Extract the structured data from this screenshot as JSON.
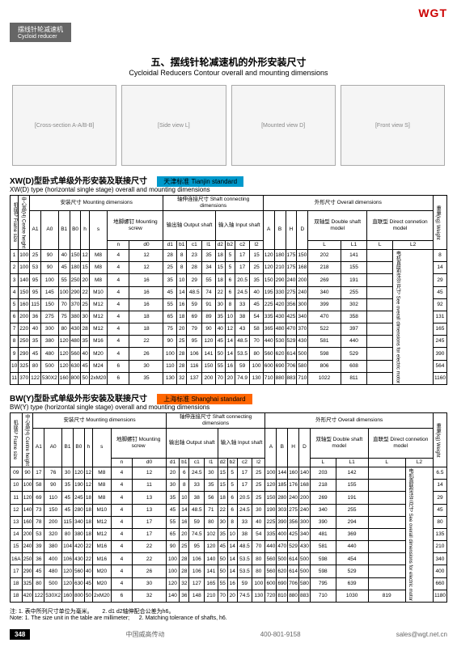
{
  "logo": "WGT",
  "headerBar": {
    "cn": "摆线针轮减速机",
    "en": "Cycloid reducer"
  },
  "mainTitle": {
    "cn": "五、摆线针轮减速机的外形安装尺寸",
    "en": "Cycloidal Reducers Contour overall and mounting dimensions"
  },
  "diagramPlaceholders": [
    "[Cross-section A-A/B-B]",
    "[Side view L]",
    "[Mounted view D]",
    "[Front view S]"
  ],
  "tableXW": {
    "subtitleCn": "XW(D)型卧式单级外形安装及联接尺寸",
    "subtitleEn": "XW(D) type (horizontal single stage) overall and mounting dimensions",
    "badge": "天津标准 Tianjin standard",
    "badgeClass": "badge-blue",
    "groups": {
      "frame": "机座号\nFrame size",
      "centre": "中心高(H)\nCentre height",
      "mounting": "安装尺寸 Mounting dimensions",
      "mscrew": "地脚螺钉\nMounting screw",
      "shaft": "轴伸连接尺寸\nShaft connecting dimensions",
      "output": "输出轴\nOutput shaft",
      "input": "输入轴\nInput shaft",
      "overall": "外形尺寸 Overall dimensions",
      "double": "双轴型\nDouble shaft model",
      "direct": "直联型\nDirect connetion model",
      "weight": "重量(kg)\nWeight",
      "flange": "电机直联型法兰尺寸\nSee overall dimensions\nfor electric motor"
    },
    "cols": [
      "A1",
      "A0",
      "B1",
      "B0",
      "h",
      "s",
      "n",
      "d0",
      "d1",
      "b1",
      "c1",
      "l1",
      "d2",
      "b2",
      "c2",
      "l2",
      "A",
      "B",
      "H",
      "D",
      "L",
      "L1",
      "L",
      "L2"
    ],
    "rows": [
      [
        "1",
        "100",
        "25",
        "90",
        "40",
        "150",
        "12",
        "M8",
        "4",
        "12",
        "28",
        "8",
        "23",
        "35",
        "18",
        "5",
        "17",
        "15",
        "120",
        "180",
        "175",
        "150",
        "202",
        "141",
        "",
        "8"
      ],
      [
        "2",
        "100",
        "53",
        "90",
        "45",
        "180",
        "15",
        "M8",
        "4",
        "12",
        "25",
        "8",
        "28",
        "34",
        "15",
        "5",
        "17",
        "25",
        "120",
        "210",
        "175",
        "168",
        "218",
        "155",
        "",
        "14"
      ],
      [
        "3",
        "140",
        "95",
        "100",
        "55",
        "250",
        "20",
        "M8",
        "4",
        "16",
        "35",
        "10",
        "29",
        "55",
        "18",
        "6",
        "20.5",
        "35",
        "150",
        "290",
        "240",
        "200",
        "269",
        "191",
        "",
        "29"
      ],
      [
        "4",
        "150",
        "95",
        "145",
        "100",
        "290",
        "22",
        "M10",
        "4",
        "16",
        "45",
        "14",
        "48.5",
        "74",
        "22",
        "6",
        "24.5",
        "40",
        "195",
        "330",
        "275",
        "240",
        "340",
        "255",
        "",
        "45"
      ],
      [
        "5",
        "160",
        "115",
        "150",
        "70",
        "370",
        "25",
        "M12",
        "4",
        "16",
        "55",
        "16",
        "59",
        "91",
        "30",
        "8",
        "33",
        "45",
        "225",
        "420",
        "356",
        "300",
        "399",
        "302",
        "",
        "92"
      ],
      [
        "6",
        "200",
        "36",
        "275",
        "75",
        "380",
        "30",
        "M12",
        "4",
        "18",
        "65",
        "18",
        "69",
        "89",
        "35",
        "10",
        "38",
        "54",
        "335",
        "430",
        "425",
        "340",
        "470",
        "358",
        "",
        "131"
      ],
      [
        "7",
        "220",
        "40",
        "300",
        "80",
        "430",
        "28",
        "M12",
        "4",
        "18",
        "75",
        "20",
        "79",
        "90",
        "40",
        "12",
        "43",
        "58",
        "365",
        "480",
        "470",
        "370",
        "522",
        "397",
        "",
        "165"
      ],
      [
        "8",
        "250",
        "35",
        "380",
        "120",
        "480",
        "35",
        "M16",
        "4",
        "22",
        "90",
        "25",
        "95",
        "120",
        "45",
        "14",
        "48.5",
        "70",
        "440",
        "530",
        "529",
        "430",
        "581",
        "440",
        "",
        "245"
      ],
      [
        "9",
        "290",
        "45",
        "480",
        "120",
        "560",
        "40",
        "M20",
        "4",
        "26",
        "100",
        "28",
        "106",
        "141",
        "50",
        "14",
        "53.5",
        "80",
        "560",
        "620",
        "614",
        "500",
        "598",
        "529",
        "",
        "390"
      ],
      [
        "10",
        "325",
        "80",
        "500",
        "120",
        "630",
        "45",
        "M24",
        "6",
        "30",
        "110",
        "28",
        "116",
        "150",
        "55",
        "16",
        "59",
        "100",
        "600",
        "690",
        "706",
        "580",
        "806",
        "608",
        "",
        "564"
      ],
      [
        "11",
        "370",
        "122",
        "530X2",
        "160",
        "800",
        "50",
        "2xM20",
        "6",
        "35",
        "130",
        "32",
        "137",
        "200",
        "70",
        "20",
        "74.9",
        "130",
        "710",
        "880",
        "883",
        "710",
        "1022",
        "811",
        "",
        "1160"
      ]
    ]
  },
  "tableBW": {
    "subtitleCn": "BW(Y)型卧式单级外形安装及联接尺寸",
    "subtitleEn": "BW(Y) type (horizontal single stage) overall and mounting dimensions",
    "badge": "上海标准 Shanghai standard",
    "badgeClass": "badge-orange",
    "cols": [
      "A1",
      "A0",
      "B1",
      "B0",
      "h",
      "s",
      "n",
      "d0",
      "d1",
      "b1",
      "c1",
      "l1",
      "d2",
      "b2",
      "c2",
      "l2",
      "A",
      "B",
      "H",
      "D",
      "L",
      "L1",
      "L",
      "L2"
    ],
    "rows": [
      [
        "09",
        "90",
        "17",
        "76",
        "30",
        "120",
        "12",
        "M8",
        "4",
        "12",
        "20",
        "6",
        "24.5",
        "30",
        "15",
        "5",
        "17",
        "25",
        "100",
        "144",
        "160",
        "140",
        "203",
        "142",
        "",
        "6.5"
      ],
      [
        "10",
        "100",
        "58",
        "90",
        "35",
        "190",
        "12",
        "M8",
        "4",
        "11",
        "30",
        "8",
        "33",
        "35",
        "15",
        "5",
        "17",
        "25",
        "120",
        "185",
        "176",
        "168",
        "218",
        "155",
        "",
        "14"
      ],
      [
        "11",
        "120",
        "69",
        "110",
        "45",
        "245",
        "18",
        "M8",
        "4",
        "13",
        "35",
        "10",
        "38",
        "56",
        "18",
        "6",
        "20.5",
        "25",
        "150",
        "280",
        "240",
        "200",
        "269",
        "191",
        "",
        "29"
      ],
      [
        "12",
        "140",
        "73",
        "150",
        "45",
        "280",
        "18",
        "M10",
        "4",
        "13",
        "45",
        "14",
        "48.5",
        "71",
        "22",
        "6",
        "24.5",
        "30",
        "190",
        "303",
        "275",
        "240",
        "340",
        "255",
        "",
        "45"
      ],
      [
        "13",
        "160",
        "78",
        "200",
        "115",
        "340",
        "18",
        "M12",
        "4",
        "17",
        "55",
        "16",
        "59",
        "80",
        "30",
        "8",
        "33",
        "40",
        "225",
        "390",
        "356",
        "300",
        "390",
        "294",
        "",
        "80"
      ],
      [
        "14",
        "200",
        "53",
        "320",
        "80",
        "380",
        "18",
        "M12",
        "4",
        "17",
        "65",
        "20",
        "74.5",
        "102",
        "35",
        "10",
        "38",
        "54",
        "335",
        "400",
        "425",
        "340",
        "481",
        "369",
        "",
        "135"
      ],
      [
        "15",
        "240",
        "39",
        "380",
        "104",
        "420",
        "22",
        "M16",
        "4",
        "22",
        "90",
        "25",
        "95",
        "120",
        "45",
        "14",
        "48.5",
        "70",
        "440",
        "470",
        "529",
        "430",
        "581",
        "440",
        "",
        "210"
      ],
      [
        "16A",
        "250",
        "36",
        "400",
        "106",
        "430",
        "22",
        "M16",
        "4",
        "22",
        "100",
        "28",
        "106",
        "140",
        "50",
        "14",
        "53.5",
        "80",
        "560",
        "500",
        "614",
        "500",
        "598",
        "454",
        "",
        "340"
      ],
      [
        "17",
        "290",
        "45",
        "480",
        "120",
        "560",
        "40",
        "M20",
        "4",
        "26",
        "100",
        "28",
        "106",
        "141",
        "50",
        "14",
        "53.5",
        "80",
        "560",
        "620",
        "614",
        "500",
        "598",
        "529",
        "",
        "400"
      ],
      [
        "18",
        "325",
        "80",
        "500",
        "120",
        "630",
        "45",
        "M20",
        "4",
        "30",
        "120",
        "32",
        "127",
        "165",
        "55",
        "16",
        "59",
        "100",
        "600",
        "690",
        "706",
        "580",
        "795",
        "639",
        "",
        "660"
      ],
      [
        "18",
        "420",
        "122",
        "530X2",
        "160",
        "800",
        "50",
        "2xM20",
        "6",
        "32",
        "140",
        "36",
        "148",
        "210",
        "70",
        "20",
        "74.5",
        "130",
        "720",
        "810",
        "880",
        "883",
        "710",
        "1030",
        "819",
        "1180"
      ]
    ]
  },
  "notes": {
    "cn1": "注: 1. 表中所列尺寸单位为毫米。",
    "cn2": "2. d1 d2轴伸配合公差为h6。",
    "en1": "Note: 1. The size unit in the table are millimeter;",
    "en2": "2. Matching tolerance of shafts, h6."
  },
  "footer": {
    "page": "348",
    "company": "中国威高传动",
    "phone": "400-801-9158",
    "email": "sales@wgt.net.cn"
  }
}
